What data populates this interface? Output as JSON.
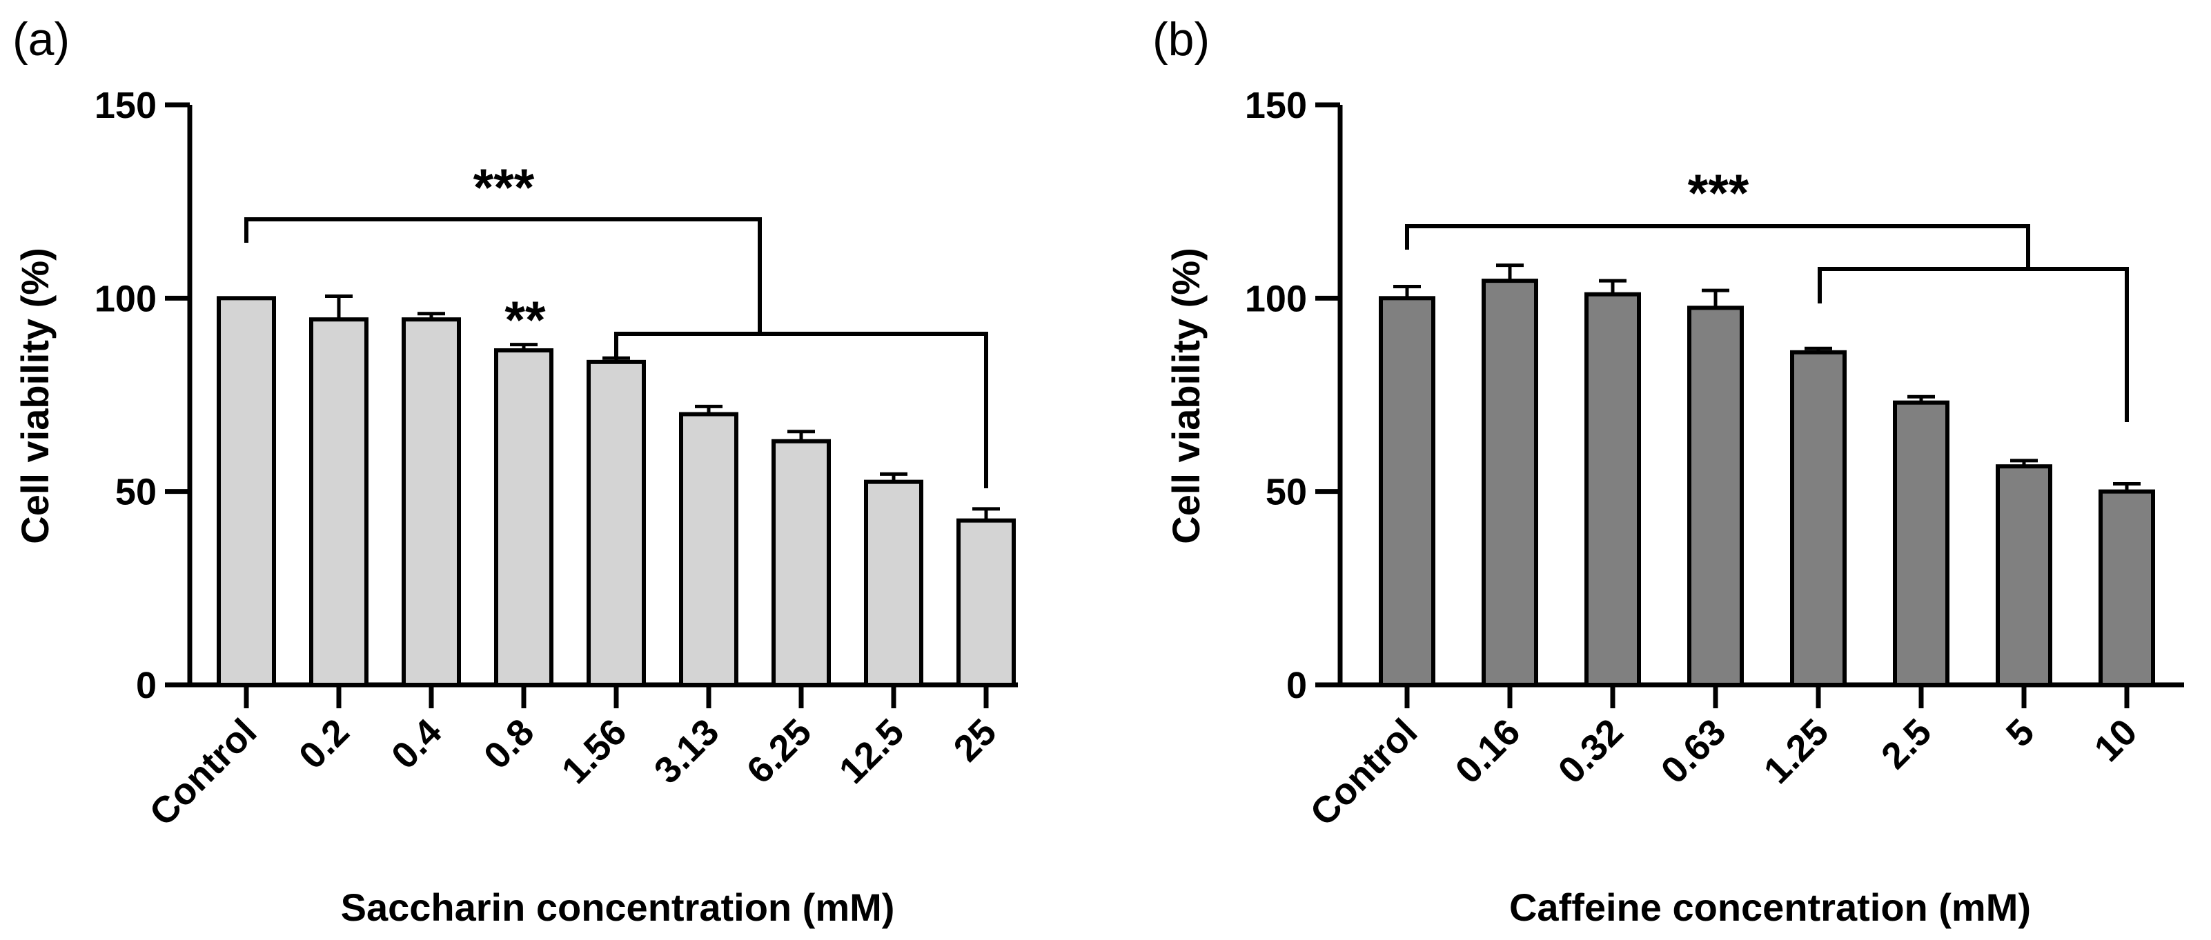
{
  "chart_data": [
    {
      "type": "bar",
      "panel_label": "(a)",
      "categories": [
        "Control",
        "0.2",
        "0.4",
        "0.8",
        "1.56",
        "3.13",
        "6.25",
        "12.5",
        "25"
      ],
      "values": [
        100,
        94.5,
        94.5,
        86.5,
        83.5,
        70,
        63,
        52.5,
        42.5
      ],
      "errors": [
        0,
        6,
        1.5,
        1.5,
        1,
        2,
        2.5,
        2,
        3
      ],
      "bar_color": "#d4d4d4",
      "xlabel": "Saccharin concentration (mM)",
      "ylabel": "Cell viability (%)",
      "ylim": [
        0,
        150
      ],
      "yticks": [
        "0",
        "50",
        "100",
        "150"
      ],
      "annotations": [
        {
          "text": "***",
          "type": "bracket",
          "from": "Control",
          "to": "1.56→25 bracket"
        },
        {
          "text": "**",
          "type": "label",
          "category": "0.8"
        }
      ]
    },
    {
      "type": "bar",
      "panel_label": "(b)",
      "categories": [
        "Control",
        "0.16",
        "0.32",
        "0.63",
        "1.25",
        "2.5",
        "5",
        "10"
      ],
      "values": [
        100,
        104.5,
        101,
        97.5,
        86,
        73,
        56.5,
        50
      ],
      "errors": [
        3,
        4,
        3.5,
        4.5,
        1,
        1.5,
        1.5,
        2
      ],
      "bar_color": "#808080",
      "xlabel": "Caffeine concentration (mM)",
      "ylabel": "Cell viability (%)",
      "ylim": [
        0,
        150
      ],
      "yticks": [
        "0",
        "50",
        "100",
        "150"
      ],
      "annotations": [
        {
          "text": "***",
          "type": "bracket",
          "from": "Control",
          "to": "1.25→10 bracket"
        }
      ]
    }
  ]
}
